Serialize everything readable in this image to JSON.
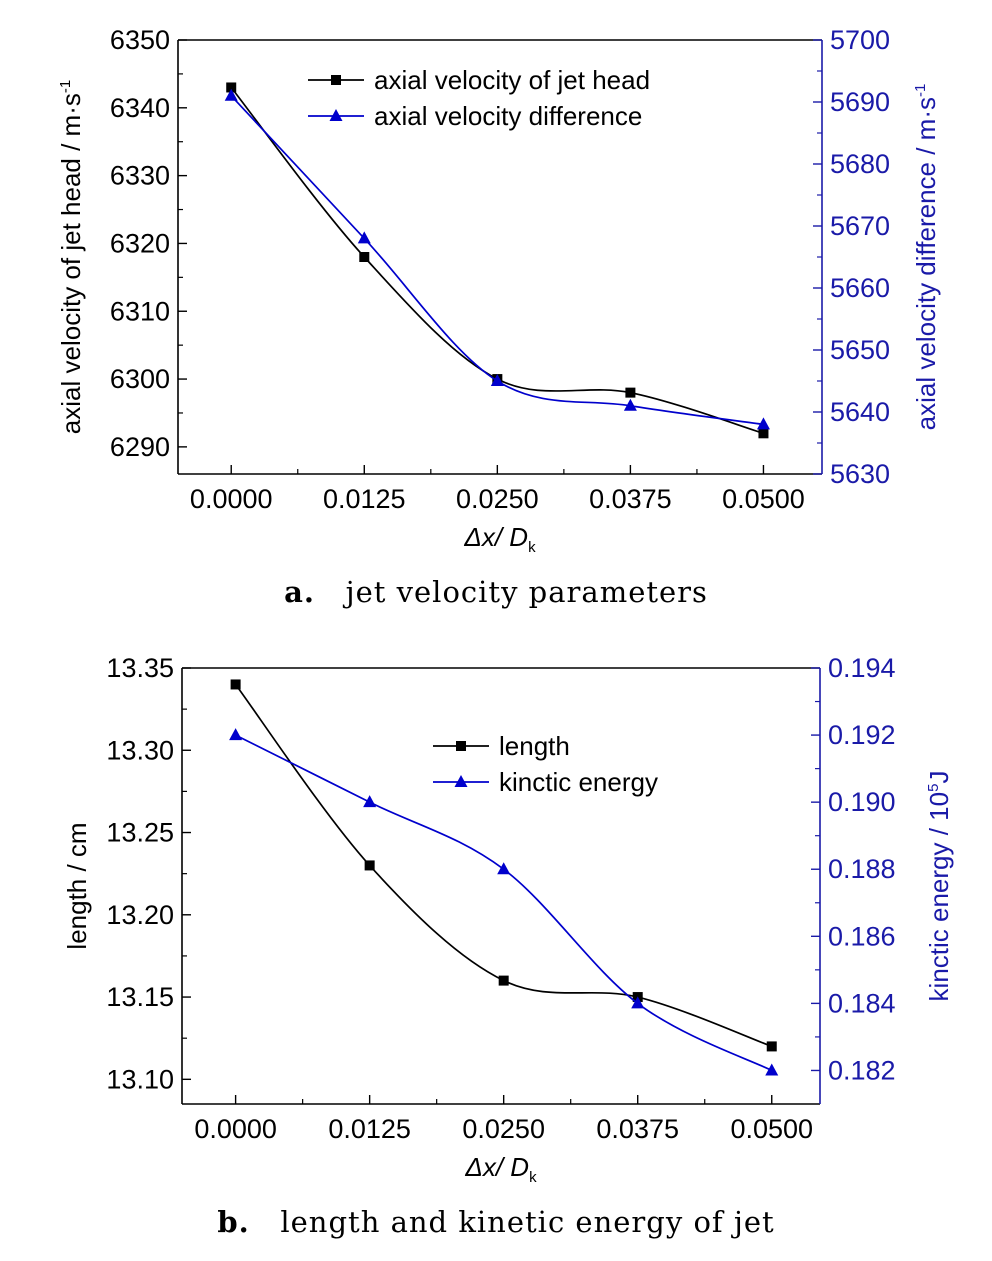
{
  "colors": {
    "series1": "#000000",
    "series2": "#0000cc",
    "right_axis": "#1a1aa8"
  },
  "chart_data": [
    {
      "type": "line",
      "caption_letter": "a.",
      "caption_text": "jet velocity parameters",
      "xlabel": "Δx/ D",
      "xlabel_sub": "k",
      "ylabel": "axial velocity of jet head / m·s",
      "ylabel_sup": "-1",
      "y2label": "axial velocity difference / m·s",
      "y2label_sup": "-1",
      "x": [
        0.0,
        0.0125,
        0.025,
        0.0375,
        0.05
      ],
      "xtick_labels": [
        "0.0000",
        "0.0125",
        "0.0250",
        "0.0375",
        "0.0500"
      ],
      "xlim": [
        -0.005,
        0.0555
      ],
      "ylim": [
        6286,
        6350
      ],
      "yticks": [
        6290,
        6300,
        6310,
        6320,
        6330,
        6340,
        6350
      ],
      "ytick_labels": [
        "6290",
        "6300",
        "6310",
        "6320",
        "6330",
        "6340",
        "6350"
      ],
      "y2lim": [
        5630,
        5700
      ],
      "y2ticks": [
        5630,
        5640,
        5650,
        5660,
        5670,
        5680,
        5690,
        5700
      ],
      "y2tick_labels": [
        "5630",
        "5640",
        "5650",
        "5660",
        "5670",
        "5680",
        "5690",
        "5700"
      ],
      "legend_position": "top-center",
      "series": [
        {
          "name": "axial velocity of jet head",
          "axis": "left",
          "marker": "square",
          "values": [
            6343,
            6318,
            6300,
            6298,
            6292
          ]
        },
        {
          "name": "axial velocity difference",
          "axis": "right",
          "marker": "triangle",
          "values": [
            5691,
            5668,
            5645,
            5641,
            5638
          ]
        }
      ]
    },
    {
      "type": "line",
      "caption_letter": "b.",
      "caption_text": "length and kinetic energy of jet",
      "xlabel": "Δx/ D",
      "xlabel_sub": "k",
      "ylabel": "length / cm",
      "ylabel_sup": "",
      "y2label": "kinctic energy / 10",
      "y2label_sup": "5",
      "y2label_tail": "J",
      "x": [
        0.0,
        0.0125,
        0.025,
        0.0375,
        0.05
      ],
      "xtick_labels": [
        "0.0000",
        "0.0125",
        "0.0250",
        "0.0375",
        "0.0500"
      ],
      "xlim": [
        -0.005,
        0.0545
      ],
      "ylim": [
        13.085,
        13.35
      ],
      "yticks": [
        13.1,
        13.15,
        13.2,
        13.25,
        13.3,
        13.35
      ],
      "ytick_labels": [
        "13.10",
        "13.15",
        "13.20",
        "13.25",
        "13.30",
        "13.35"
      ],
      "y2lim": [
        0.181,
        0.194
      ],
      "y2ticks": [
        0.182,
        0.184,
        0.186,
        0.188,
        0.19,
        0.192,
        0.194
      ],
      "y2tick_labels": [
        "0.182",
        "0.184",
        "0.186",
        "0.188",
        "0.190",
        "0.192",
        "0.194"
      ],
      "legend_position": "top-center",
      "series": [
        {
          "name": "length",
          "axis": "left",
          "marker": "square",
          "values": [
            13.34,
            13.23,
            13.16,
            13.15,
            13.12
          ]
        },
        {
          "name": "kinctic energy",
          "axis": "right",
          "marker": "triangle",
          "values": [
            0.192,
            0.19,
            0.188,
            0.184,
            0.182
          ]
        }
      ]
    }
  ]
}
